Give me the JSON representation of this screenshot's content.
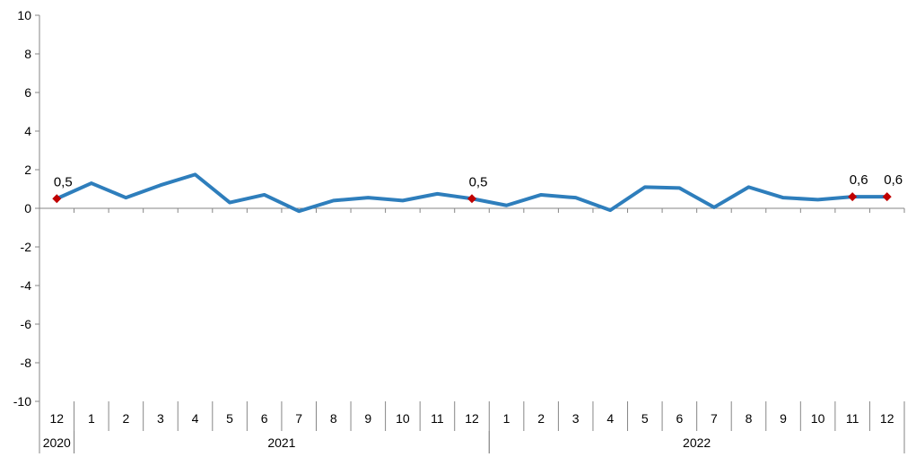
{
  "chart_data": {
    "type": "line",
    "title": "",
    "xlabel": "",
    "ylabel": "",
    "ylim": [
      -10,
      10
    ],
    "yticks": [
      "10",
      "8",
      "6",
      "4",
      "2",
      "0",
      "-2",
      "-4",
      "-6",
      "-8",
      "-10"
    ],
    "categories": [
      "12",
      "1",
      "2",
      "3",
      "4",
      "5",
      "6",
      "7",
      "8",
      "9",
      "10",
      "11",
      "12",
      "1",
      "2",
      "3",
      "4",
      "5",
      "6",
      "7",
      "8",
      "9",
      "10",
      "11",
      "12"
    ],
    "years": [
      {
        "label": "2020",
        "start": 0,
        "end": 0
      },
      {
        "label": "2021",
        "start": 1,
        "end": 12
      },
      {
        "label": "2022",
        "start": 13,
        "end": 24
      }
    ],
    "series": [
      {
        "color": "#2E7EBC",
        "values": [
          0.5,
          1.3,
          0.55,
          1.2,
          1.75,
          0.3,
          0.7,
          -0.15,
          0.4,
          0.55,
          0.4,
          0.75,
          0.5,
          0.15,
          0.7,
          0.55,
          -0.1,
          1.1,
          1.05,
          0.05,
          1.1,
          0.55,
          0.45,
          0.6,
          0.6
        ]
      }
    ],
    "highlight_color": "#C00000",
    "annotations": [
      {
        "index": 0,
        "text": "0,5"
      },
      {
        "index": 12,
        "text": "0,5"
      },
      {
        "index": 23,
        "text": "0,6"
      },
      {
        "index": 24,
        "text": "0,6"
      }
    ],
    "grid": false
  }
}
